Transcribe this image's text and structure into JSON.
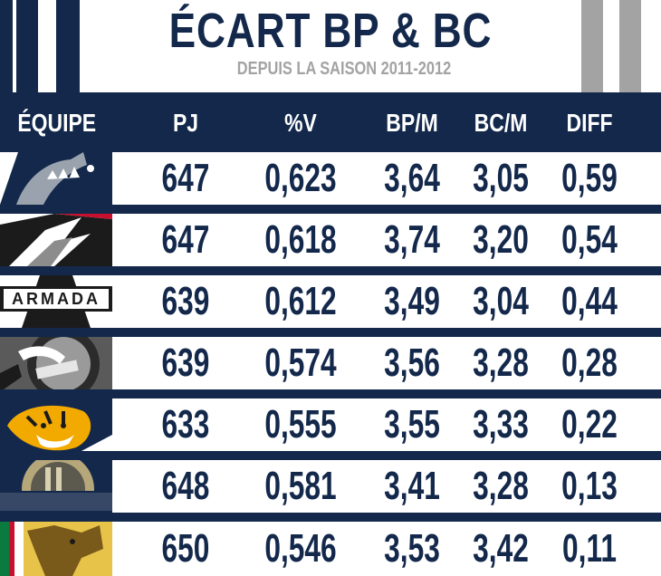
{
  "title": "ÉCART BP & BC",
  "subtitle": "DEPUIS LA SAISON 2011-2012",
  "header": {
    "team": "ÉQUIPE",
    "gp": "PJ",
    "win_pct": "%V",
    "gf": "BP/M",
    "ga": "BC/M",
    "diff": "DIFF"
  },
  "rows": [
    {
      "logo": "sharks-logo",
      "gp": "647",
      "win_pct": "0,623",
      "gf": "3,64",
      "ga": "3,05",
      "diff": "0,59"
    },
    {
      "logo": "husky-logo",
      "gp": "647",
      "win_pct": "0,618",
      "gf": "3,74",
      "ga": "3,20",
      "diff": "0,54"
    },
    {
      "logo": "armada-logo",
      "gp": "639",
      "win_pct": "0,612",
      "gf": "3,49",
      "ga": "3,04",
      "diff": "0,44",
      "logo_text": "ARMADA"
    },
    {
      "logo": "olympiques-logo",
      "gp": "639",
      "win_pct": "0,574",
      "gf": "3,56",
      "ga": "3,28",
      "diff": "0,28"
    },
    {
      "logo": "tigres-logo",
      "gp": "633",
      "win_pct": "0,555",
      "gf": "3,55",
      "ga": "3,33",
      "diff": "0,22"
    },
    {
      "logo": "islanders-logo",
      "gp": "648",
      "win_pct": "0,581",
      "gf": "3,41",
      "ga": "3,28",
      "diff": "0,13"
    },
    {
      "logo": "mooseheads-logo",
      "gp": "650",
      "win_pct": "0,546",
      "gf": "3,53",
      "ga": "3,42",
      "diff": "0,11"
    }
  ]
}
